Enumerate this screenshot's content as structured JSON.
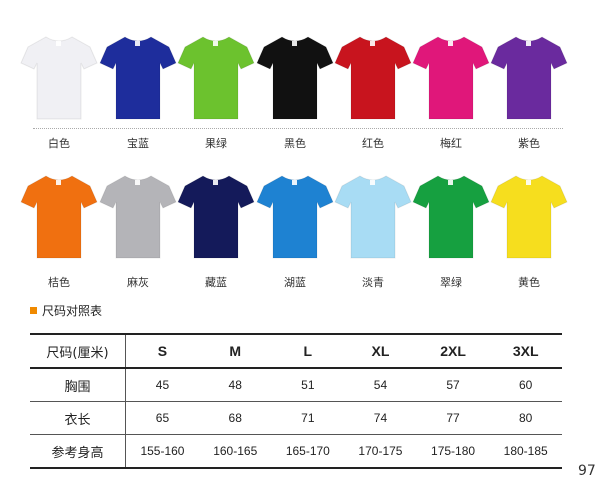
{
  "colors_row1": [
    {
      "label": "白色",
      "color": "#f0f0f4"
    },
    {
      "label": "宝蓝",
      "color": "#1e2d9c"
    },
    {
      "label": "果绿",
      "color": "#6cc22e"
    },
    {
      "label": "黑色",
      "color": "#111111"
    },
    {
      "label": "红色",
      "color": "#c8141e"
    },
    {
      "label": "梅红",
      "color": "#e0177a"
    },
    {
      "label": "紫色",
      "color": "#6a2a9e"
    }
  ],
  "colors_row2": [
    {
      "label": "桔色",
      "color": "#f07010"
    },
    {
      "label": "麻灰",
      "color": "#b4b4b8"
    },
    {
      "label": "藏蓝",
      "color": "#141a5a"
    },
    {
      "label": "湖蓝",
      "color": "#1e82d2"
    },
    {
      "label": "淡青",
      "color": "#a8dcf4"
    },
    {
      "label": "翠绿",
      "color": "#16a040"
    },
    {
      "label": "黄色",
      "color": "#f6de1e"
    }
  ],
  "size_chart": {
    "title": "尺码对照表",
    "accent": "#f08a00",
    "header": [
      "尺码(厘米)",
      "S",
      "M",
      "L",
      "XL",
      "2XL",
      "3XL"
    ],
    "rows": [
      [
        "胸围",
        "45",
        "48",
        "51",
        "54",
        "57",
        "60"
      ],
      [
        "衣长",
        "65",
        "68",
        "71",
        "74",
        "77",
        "80"
      ],
      [
        "参考身高",
        "155-160",
        "160-165",
        "165-170",
        "170-175",
        "175-180",
        "180-185"
      ]
    ]
  },
  "page_number": "97"
}
